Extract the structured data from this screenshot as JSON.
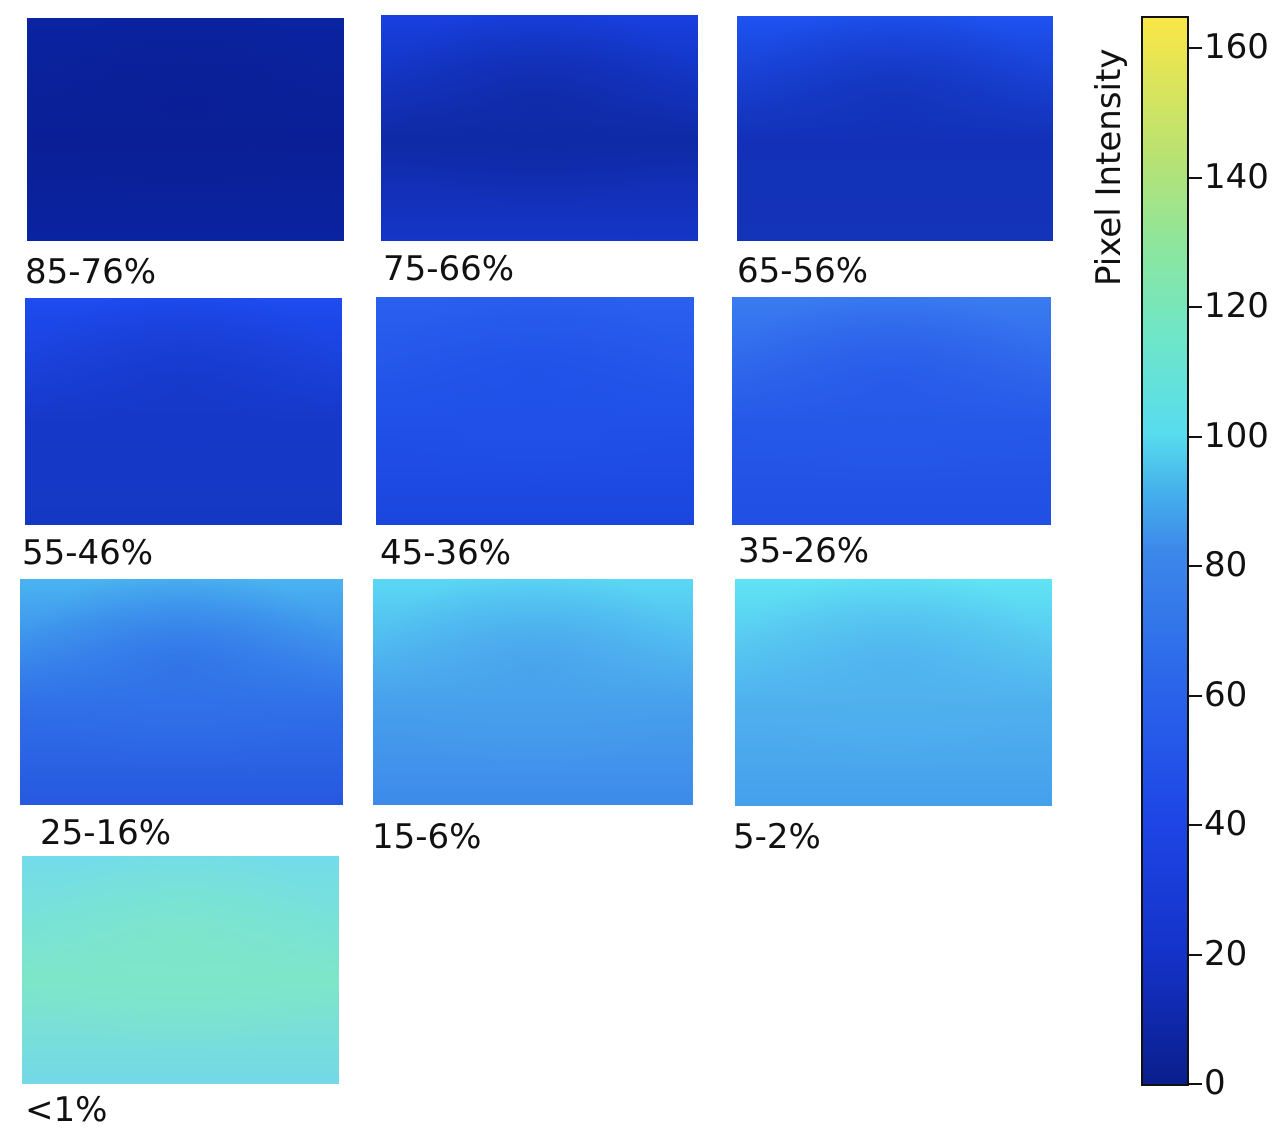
{
  "panels": [
    {
      "label": "85-76%",
      "colors": {
        "top": "#0a23a0",
        "mid": "#0a1f96",
        "bottom": "#0a23a0"
      }
    },
    {
      "label": "75-66%",
      "colors": {
        "top": "#1840e0",
        "mid": "#0f2aa6",
        "bottom": "#1535c8"
      }
    },
    {
      "label": "65-56%",
      "colors": {
        "top": "#1e52f0",
        "mid": "#1231b8",
        "bottom": "#1333b8"
      }
    },
    {
      "label": "55-46%",
      "colors": {
        "top": "#1e4cf0",
        "mid": "#1638c8",
        "bottom": "#1538c4"
      }
    },
    {
      "label": "45-36%",
      "colors": {
        "top": "#2a60ee",
        "mid": "#2050e8",
        "bottom": "#1a46de"
      }
    },
    {
      "label": "35-26%",
      "colors": {
        "top": "#3a7cf0",
        "mid": "#2658e8",
        "bottom": "#204fe4"
      }
    },
    {
      "label": "25-16%",
      "colors": {
        "top": "#4ab4f0",
        "mid": "#3070e8",
        "bottom": "#2658e0"
      }
    },
    {
      "label": "15-6%",
      "colors": {
        "top": "#5ad8f4",
        "mid": "#48a0ec",
        "bottom": "#3d8aea"
      }
    },
    {
      "label": "5-2%",
      "colors": {
        "top": "#60e4f4",
        "mid": "#4fb0ee",
        "bottom": "#45a0ec"
      }
    },
    {
      "label": "<1%",
      "colors": {
        "top": "#72dcea",
        "mid": "#7ee6c8",
        "bottom": "#74d8e8"
      }
    }
  ],
  "colorbar": {
    "title": "Pixel Intensity",
    "range": [
      0,
      165
    ],
    "ticks": [
      "0",
      "20",
      "40",
      "60",
      "80",
      "100",
      "120",
      "140",
      "160"
    ]
  }
}
